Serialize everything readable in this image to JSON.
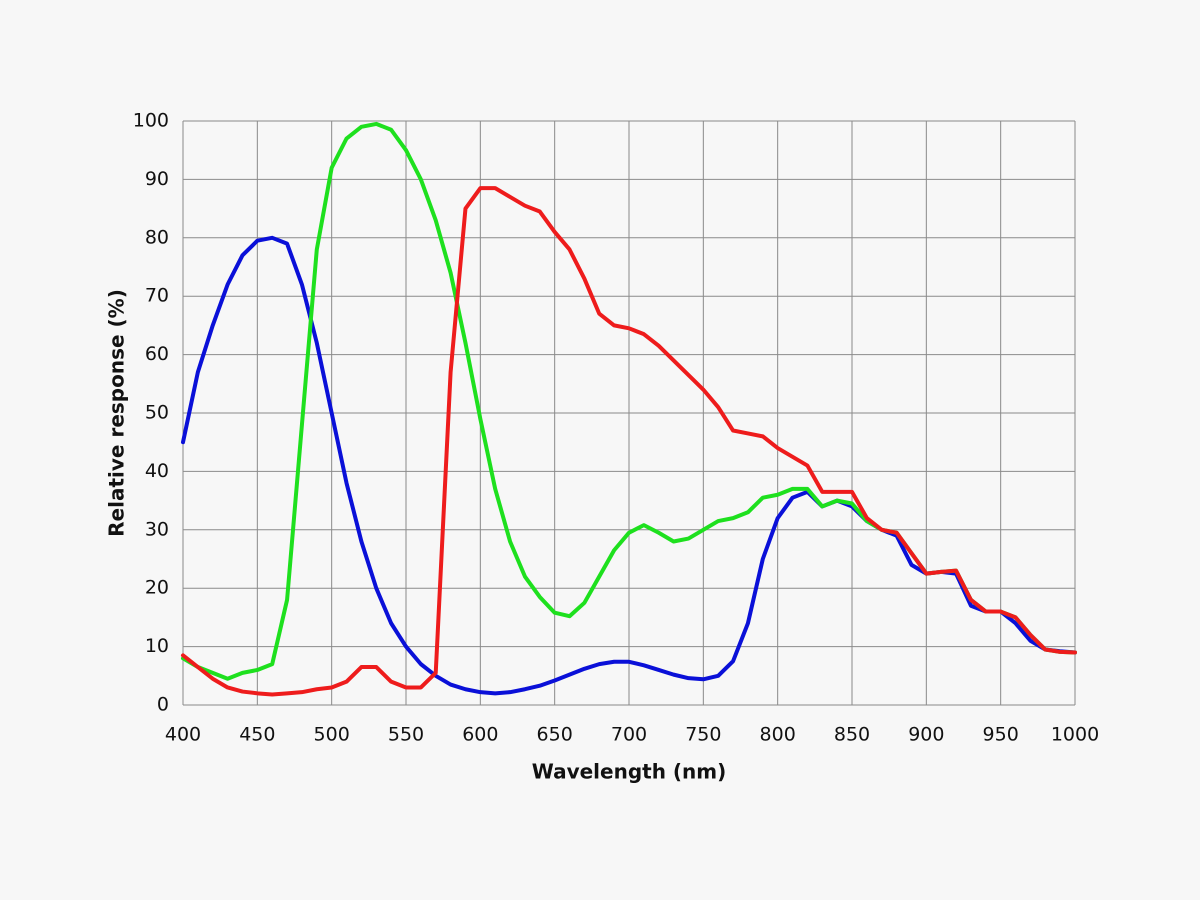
{
  "chart_data": {
    "type": "line",
    "xlabel": "Wavelength (nm)",
    "ylabel": "Relative response (%)",
    "x": [
      400,
      410,
      420,
      430,
      440,
      450,
      460,
      470,
      480,
      490,
      500,
      510,
      520,
      530,
      540,
      550,
      560,
      570,
      580,
      590,
      600,
      610,
      620,
      630,
      640,
      650,
      660,
      670,
      680,
      690,
      700,
      710,
      720,
      730,
      740,
      750,
      760,
      770,
      780,
      790,
      800,
      810,
      820,
      830,
      840,
      850,
      860,
      870,
      880,
      890,
      900,
      910,
      920,
      930,
      940,
      950,
      960,
      970,
      980,
      990,
      1000
    ],
    "series": [
      {
        "color": "#0a10d8",
        "values": [
          45,
          57,
          65,
          72,
          77,
          79.5,
          80,
          79,
          72,
          62,
          50,
          38,
          28,
          20,
          14,
          10,
          7,
          5,
          3.5,
          2.7,
          2.2,
          2,
          2.2,
          2.7,
          3.3,
          4.2,
          5.2,
          6.2,
          7,
          7.4,
          7.4,
          6.8,
          6,
          5.2,
          4.6,
          4.4,
          5,
          7.5,
          14,
          25,
          32,
          35.5,
          36.5,
          34,
          35,
          34,
          31.5,
          30,
          29,
          24,
          22.5,
          22.8,
          22.5,
          17,
          16,
          16,
          14,
          11,
          9.5,
          9.2,
          9
        ]
      },
      {
        "color": "#1ee01e",
        "values": [
          8,
          6.5,
          5.5,
          4.5,
          5.5,
          6,
          7,
          18,
          48,
          78,
          92,
          97,
          99,
          99.5,
          98.5,
          95,
          90,
          83,
          74,
          62,
          49,
          37,
          28,
          22,
          18.5,
          15.8,
          15.2,
          17.5,
          22,
          26.5,
          29.5,
          30.8,
          29.5,
          28,
          28.5,
          30,
          31.5,
          32,
          33,
          35.5,
          36,
          37,
          37,
          34,
          35,
          34.5,
          31.5,
          30,
          29.5,
          26,
          22.5,
          22.8,
          23,
          18,
          16,
          16,
          15,
          12,
          9.5,
          9.1,
          9
        ]
      },
      {
        "color": "#ee1c1c",
        "values": [
          8.5,
          6.5,
          4.5,
          3,
          2.3,
          2,
          1.8,
          2,
          2.2,
          2.7,
          3,
          4,
          6.5,
          6.5,
          4,
          3,
          3,
          5.5,
          57,
          85,
          88.5,
          88.5,
          87,
          85.5,
          84.5,
          81,
          78,
          73,
          67,
          65,
          64.5,
          63.5,
          61.5,
          59,
          56.5,
          54,
          51,
          47,
          46.5,
          46,
          44,
          42.5,
          41,
          36.5,
          36.5,
          36.5,
          32,
          30,
          29.5,
          26,
          22.5,
          22.8,
          23,
          18,
          16,
          16,
          15,
          12,
          9.5,
          9.1,
          9
        ]
      }
    ],
    "xlim": [
      400,
      1000
    ],
    "xticks": [
      400,
      450,
      500,
      550,
      600,
      650,
      700,
      750,
      800,
      850,
      900,
      950,
      1000
    ],
    "ylim": [
      0,
      100
    ],
    "yticks": [
      0,
      10,
      20,
      30,
      40,
      50,
      60,
      70,
      80,
      90,
      100
    ],
    "grid": true
  }
}
